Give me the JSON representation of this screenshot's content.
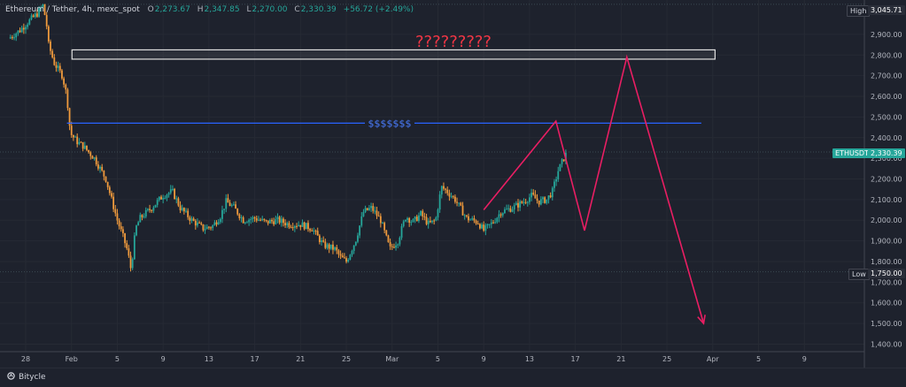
{
  "header": {
    "symbol": "Ethereum / Tether, 4h, mexc_spot",
    "open_key": "O",
    "open": "2,273.67",
    "high_key": "H",
    "high": "2,347.85",
    "low_key": "L",
    "low": "2,270.00",
    "close_key": "C",
    "close": "2,330.39",
    "change": "+56.72 (+2.49%)"
  },
  "annotations": {
    "question": "?????????",
    "dollars": "$$$$$$$"
  },
  "tags": {
    "high_label": "High",
    "high_value": "3,045.71",
    "ticker_label": "ETHUSDT",
    "ticker_value": "2,330.39",
    "low_label": "Low",
    "low_value": "1,750.00"
  },
  "footer": {
    "brand": "Bitycle"
  },
  "colors": {
    "background": "#1e222d",
    "up": "#26a69a",
    "down": "#ef9a3d",
    "projection": "#e91e63",
    "level_line": "#2962ff",
    "question": "#f23645"
  },
  "chart_data": {
    "type": "candlestick",
    "symbol": "ETHUSDT",
    "timeframe": "4h",
    "y_ticks": [
      1400,
      1500,
      1600,
      1700,
      1800,
      1900,
      2000,
      2100,
      2200,
      2300,
      2400,
      2500,
      2600,
      2700,
      2800,
      2900
    ],
    "y_tick_labels": [
      "1,400.00",
      "1,500.00",
      "1,600.00",
      "1,700.00",
      "1,800.00",
      "1,900.00",
      "2,000.00",
      "2,100.00",
      "2,200.00",
      "2,300.00",
      "2,400.00",
      "2,500.00",
      "2,600.00",
      "2,700.00",
      "2,800.00",
      "2,900.00"
    ],
    "ylim": [
      1350,
      3050
    ],
    "x_tick_labels": [
      "28",
      "Feb",
      "5",
      "9",
      "13",
      "17",
      "21",
      "25",
      "Mar",
      "5",
      "9",
      "13",
      "17",
      "21",
      "25",
      "Apr",
      "5",
      "9"
    ],
    "x_tick_days": [
      0,
      4,
      8,
      12,
      16,
      20,
      24,
      28,
      32,
      36,
      40,
      44,
      48,
      52,
      56,
      60,
      64,
      68
    ],
    "price_path": [
      [
        -1.5,
        2880
      ],
      [
        -0.5,
        2920
      ],
      [
        0.2,
        2960
      ],
      [
        1.0,
        3000
      ],
      [
        1.5,
        3040
      ],
      [
        1.8,
        2960
      ],
      [
        2.0,
        2850
      ],
      [
        2.5,
        2760
      ],
      [
        3.2,
        2700
      ],
      [
        3.6,
        2600
      ],
      [
        3.9,
        2420
      ],
      [
        4.5,
        2380
      ],
      [
        5.0,
        2360
      ],
      [
        6.0,
        2300
      ],
      [
        6.5,
        2250
      ],
      [
        7.0,
        2200
      ],
      [
        7.5,
        2100
      ],
      [
        8.0,
        2000
      ],
      [
        8.5,
        1920
      ],
      [
        8.9,
        1850
      ],
      [
        9.2,
        1760
      ],
      [
        9.6,
        1960
      ],
      [
        10.0,
        2010
      ],
      [
        11.0,
        2060
      ],
      [
        12.0,
        2120
      ],
      [
        12.8,
        2140
      ],
      [
        13.5,
        2060
      ],
      [
        14.5,
        2000
      ],
      [
        15.5,
        1960
      ],
      [
        16.3,
        1970
      ],
      [
        17.0,
        2020
      ],
      [
        17.5,
        2090
      ],
      [
        18.2,
        2060
      ],
      [
        19.0,
        2000
      ],
      [
        20.0,
        2010
      ],
      [
        21.0,
        1990
      ],
      [
        22.0,
        2000
      ],
      [
        23.0,
        1980
      ],
      [
        24.0,
        1980
      ],
      [
        25.0,
        1960
      ],
      [
        26.0,
        1880
      ],
      [
        27.0,
        1860
      ],
      [
        27.5,
        1820
      ],
      [
        28.0,
        1800
      ],
      [
        28.8,
        1900
      ],
      [
        29.5,
        2040
      ],
      [
        30.2,
        2060
      ],
      [
        31.0,
        2000
      ],
      [
        31.8,
        1860
      ],
      [
        32.5,
        1900
      ],
      [
        33.2,
        2020
      ],
      [
        33.8,
        1990
      ],
      [
        34.5,
        2030
      ],
      [
        35.2,
        1980
      ],
      [
        35.8,
        2000
      ],
      [
        36.3,
        2160
      ],
      [
        36.8,
        2140
      ],
      [
        37.5,
        2100
      ],
      [
        38.5,
        2010
      ],
      [
        39.5,
        1990
      ],
      [
        40.0,
        1950
      ],
      [
        40.8,
        1990
      ],
      [
        41.5,
        2040
      ],
      [
        42.5,
        2060
      ],
      [
        43.5,
        2090
      ],
      [
        44.2,
        2120
      ],
      [
        44.8,
        2090
      ],
      [
        45.5,
        2100
      ],
      [
        46.0,
        2140
      ],
      [
        46.5,
        2240
      ],
      [
        47.0,
        2300
      ],
      [
        47.3,
        2330
      ]
    ],
    "levels": [
      {
        "name": "$$$$$$$",
        "value": 2470,
        "x_start": 3.6,
        "x_end": 59.0
      },
      {
        "name": "?????????",
        "value": 2800,
        "x_range": [
          1.8,
          60.2
        ],
        "band": [
          2780,
          2825
        ]
      }
    ],
    "projection_path": [
      [
        40.0,
        2050
      ],
      [
        46.3,
        2480
      ],
      [
        48.8,
        1950
      ],
      [
        52.5,
        2790
      ],
      [
        59.2,
        1500
      ]
    ],
    "last_price": 2330.39,
    "session_high": 3045.71,
    "session_low": 1750.0
  }
}
